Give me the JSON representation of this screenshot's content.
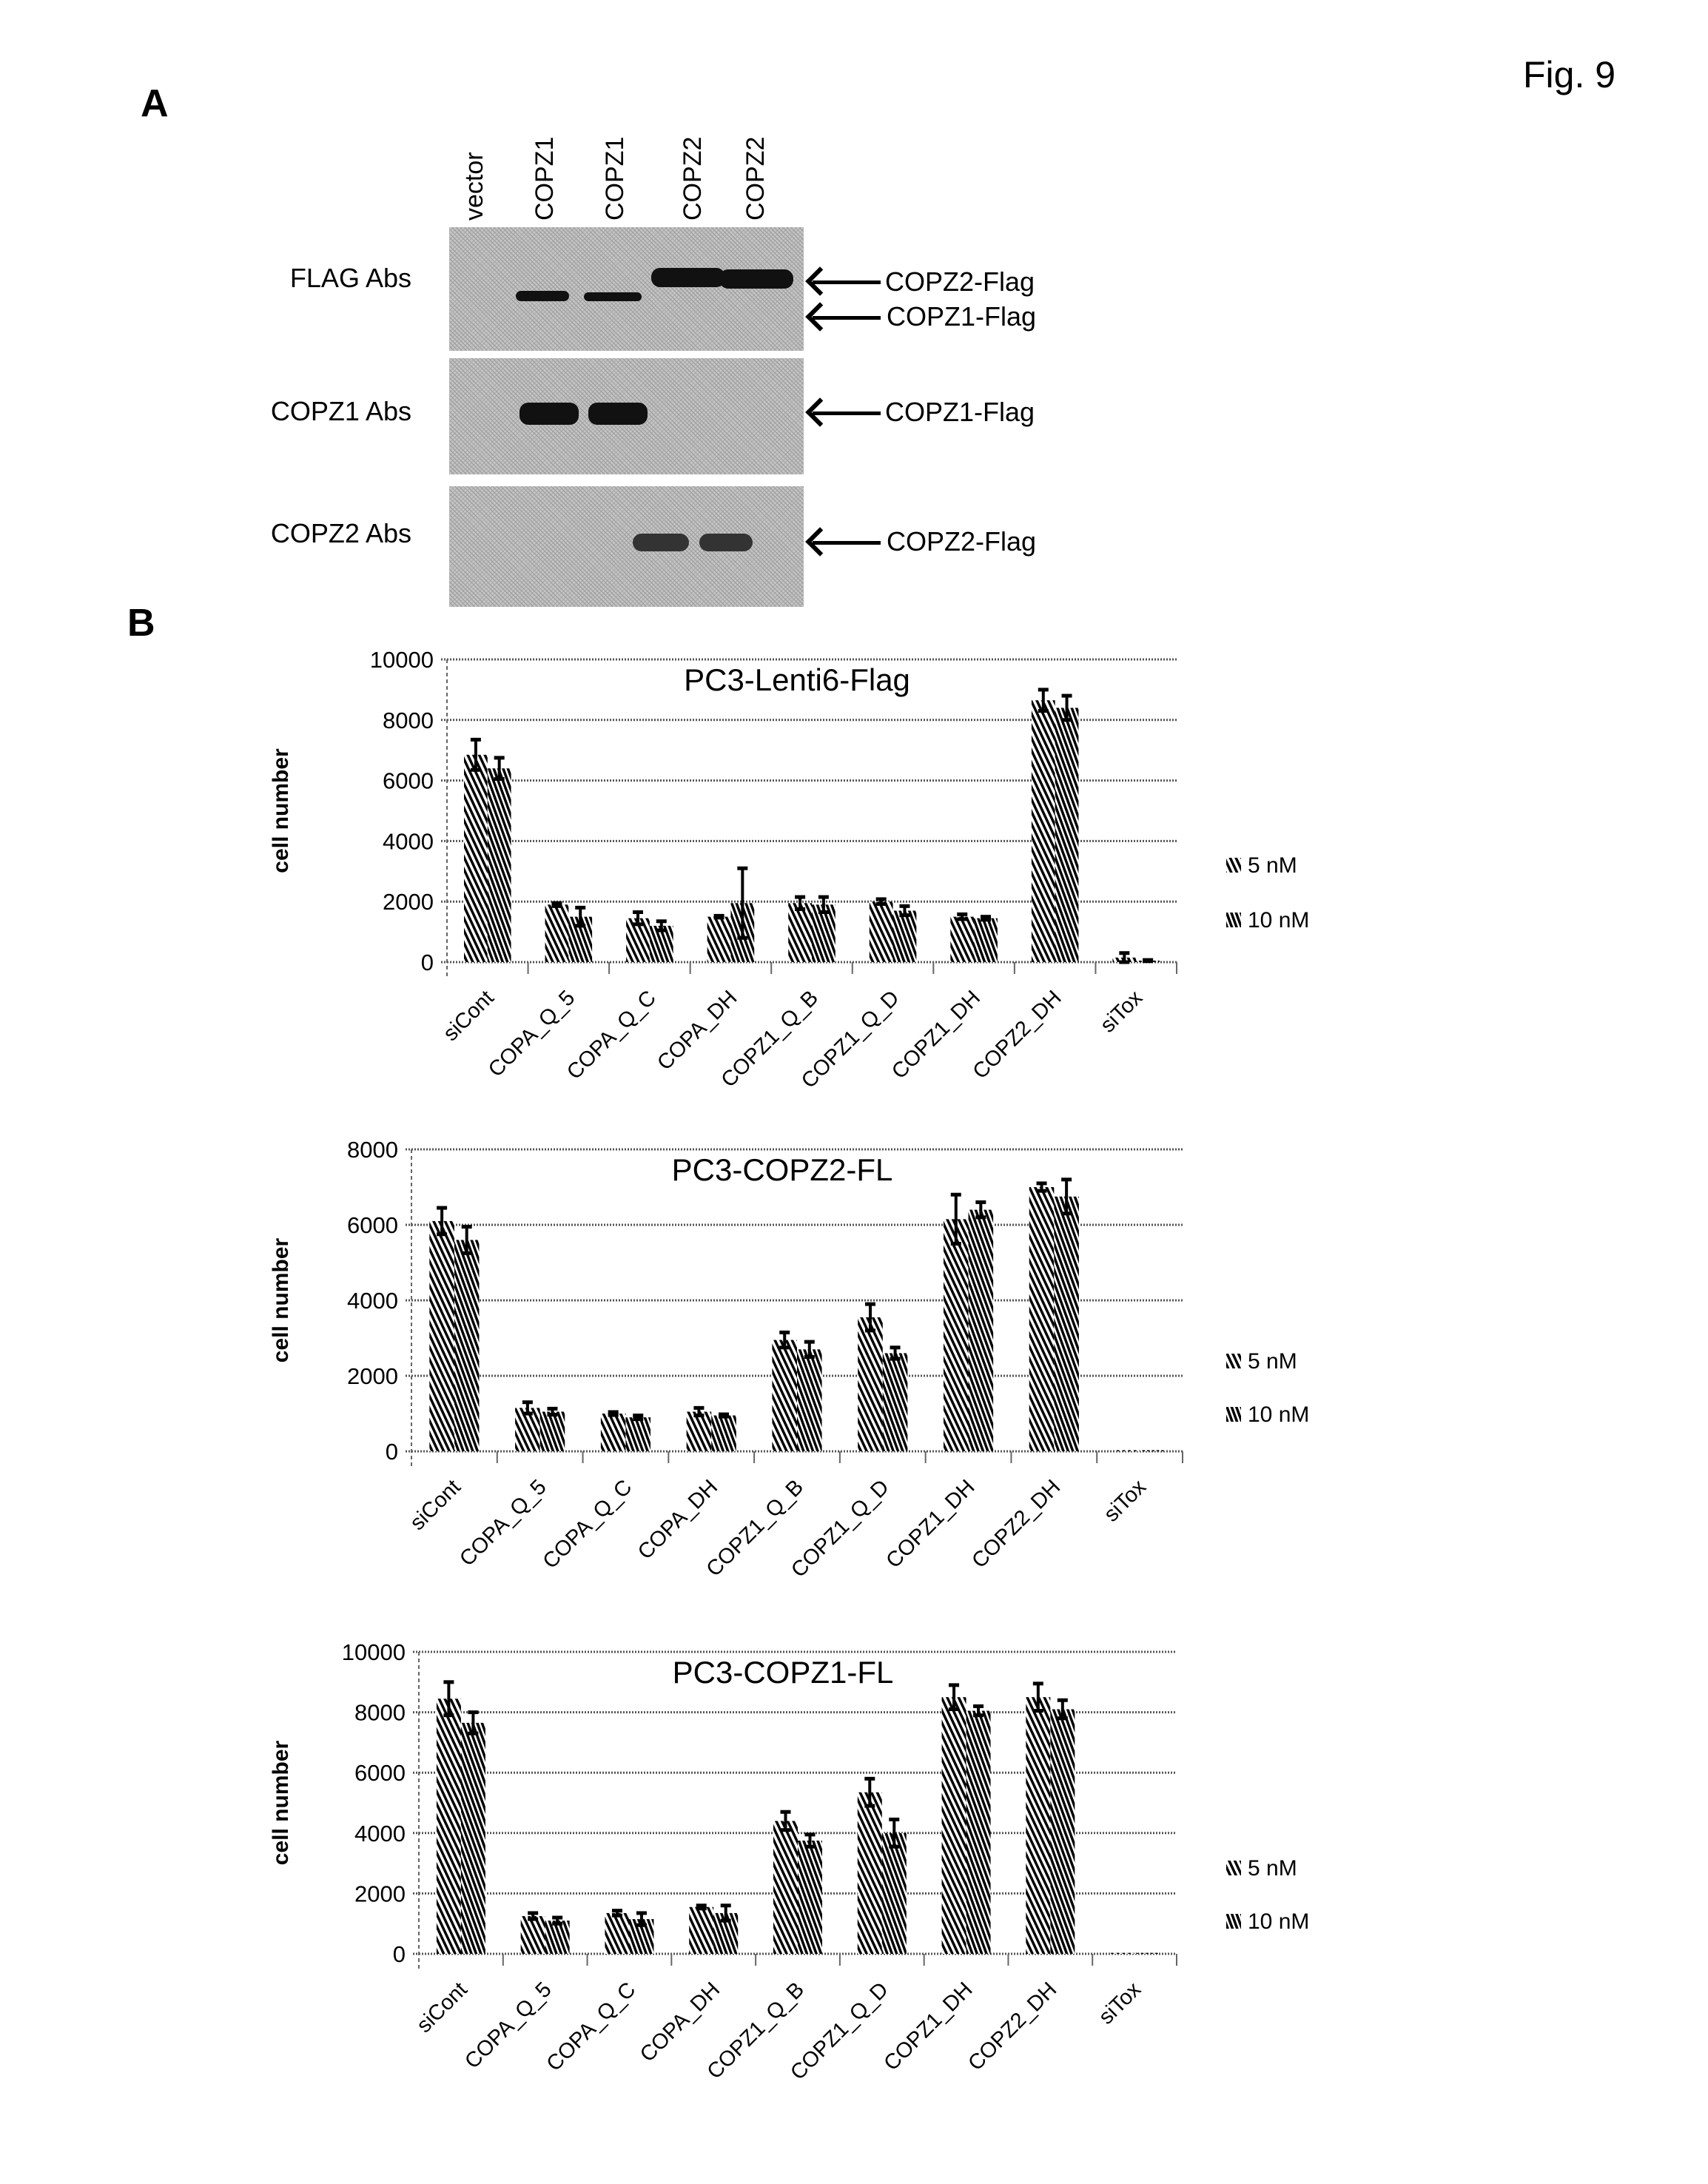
{
  "figure_label": "Fig. 9",
  "panel_a": {
    "letter": "A",
    "lanes": [
      "vector",
      "COPZ1",
      "COPZ1",
      "COPZ2",
      "COPZ2"
    ],
    "rows": [
      {
        "label": "FLAG Abs",
        "markers": [
          "COPZ2-Flag",
          "COPZ1-Flag"
        ]
      },
      {
        "label": "COPZ1 Abs",
        "markers": [
          "COPZ1-Flag"
        ]
      },
      {
        "label": "COPZ2 Abs",
        "markers": [
          "COPZ2-Flag"
        ]
      }
    ]
  },
  "panel_b": {
    "letter": "B"
  },
  "colors": {
    "bar_hatch": "#000000",
    "blot_bg": "#c4c4c4"
  },
  "chart_data": [
    {
      "type": "bar",
      "title": "PC3-Lenti6-Flag",
      "ylabel": "cell number",
      "xlabel": "",
      "ylim": [
        0,
        10000
      ],
      "yticks": [
        0,
        2000,
        4000,
        6000,
        8000,
        10000
      ],
      "grid": true,
      "legend_position": "right",
      "categories": [
        "siCont",
        "COPA_Q_5",
        "COPA_Q_C",
        "COPA_DH",
        "COPZ1_Q_B",
        "COPZ1_Q_D",
        "COPZ1_DH",
        "COPZ2_DH",
        "siTox"
      ],
      "series": [
        {
          "name": "5 nM",
          "values": [
            6850,
            1900,
            1450,
            1500,
            1950,
            2000,
            1500,
            8650,
            150
          ],
          "errors": [
            500,
            50,
            200,
            30,
            200,
            80,
            80,
            350,
            150
          ]
        },
        {
          "name": "10 nM",
          "values": [
            6400,
            1500,
            1200,
            1950,
            1900,
            1700,
            1450,
            8400,
            50
          ],
          "errors": [
            350,
            300,
            150,
            1150,
            250,
            150,
            50,
            400,
            20
          ]
        }
      ]
    },
    {
      "type": "bar",
      "title": "PC3-COPZ2-FL",
      "ylabel": "cell number",
      "xlabel": "",
      "ylim": [
        0,
        8000
      ],
      "yticks": [
        0,
        2000,
        4000,
        6000,
        8000
      ],
      "grid": true,
      "legend_position": "right",
      "categories": [
        "siCont",
        "COPA_Q_5",
        "COPA_Q_C",
        "COPA_DH",
        "COPZ1_Q_B",
        "COPZ1_Q_D",
        "COPZ1_DH",
        "COPZ2_DH",
        "siTox"
      ],
      "series": [
        {
          "name": "5 nM",
          "values": [
            6100,
            1150,
            1000,
            1050,
            2950,
            3550,
            6150,
            7000,
            30
          ],
          "errors": [
            350,
            150,
            40,
            100,
            200,
            350,
            650,
            100,
            0
          ]
        },
        {
          "name": "10 nM",
          "values": [
            5600,
            1050,
            900,
            950,
            2700,
            2600,
            6400,
            6750,
            30
          ],
          "errors": [
            350,
            80,
            50,
            30,
            200,
            150,
            200,
            450,
            0
          ]
        }
      ]
    },
    {
      "type": "bar",
      "title": "PC3-COPZ1-FL",
      "ylabel": "cell number",
      "xlabel": "",
      "ylim": [
        0,
        10000
      ],
      "yticks": [
        0,
        2000,
        4000,
        6000,
        8000,
        10000
      ],
      "grid": true,
      "legend_position": "right",
      "categories": [
        "siCont",
        "COPA_Q_5",
        "COPA_Q_C",
        "COPA_DH",
        "COPZ1_Q_B",
        "COPZ1_Q_D",
        "COPZ1_DH",
        "COPZ2_DH",
        "siTox"
      ],
      "series": [
        {
          "name": "5 nM",
          "values": [
            8450,
            1250,
            1350,
            1550,
            4400,
            5350,
            8500,
            8500,
            30
          ],
          "errors": [
            550,
            100,
            80,
            50,
            300,
            450,
            400,
            450,
            0
          ]
        },
        {
          "name": "10 nM",
          "values": [
            7650,
            1100,
            1150,
            1350,
            3750,
            4000,
            8050,
            8100,
            30
          ],
          "errors": [
            350,
            100,
            200,
            250,
            200,
            450,
            150,
            300,
            0
          ]
        }
      ]
    }
  ]
}
